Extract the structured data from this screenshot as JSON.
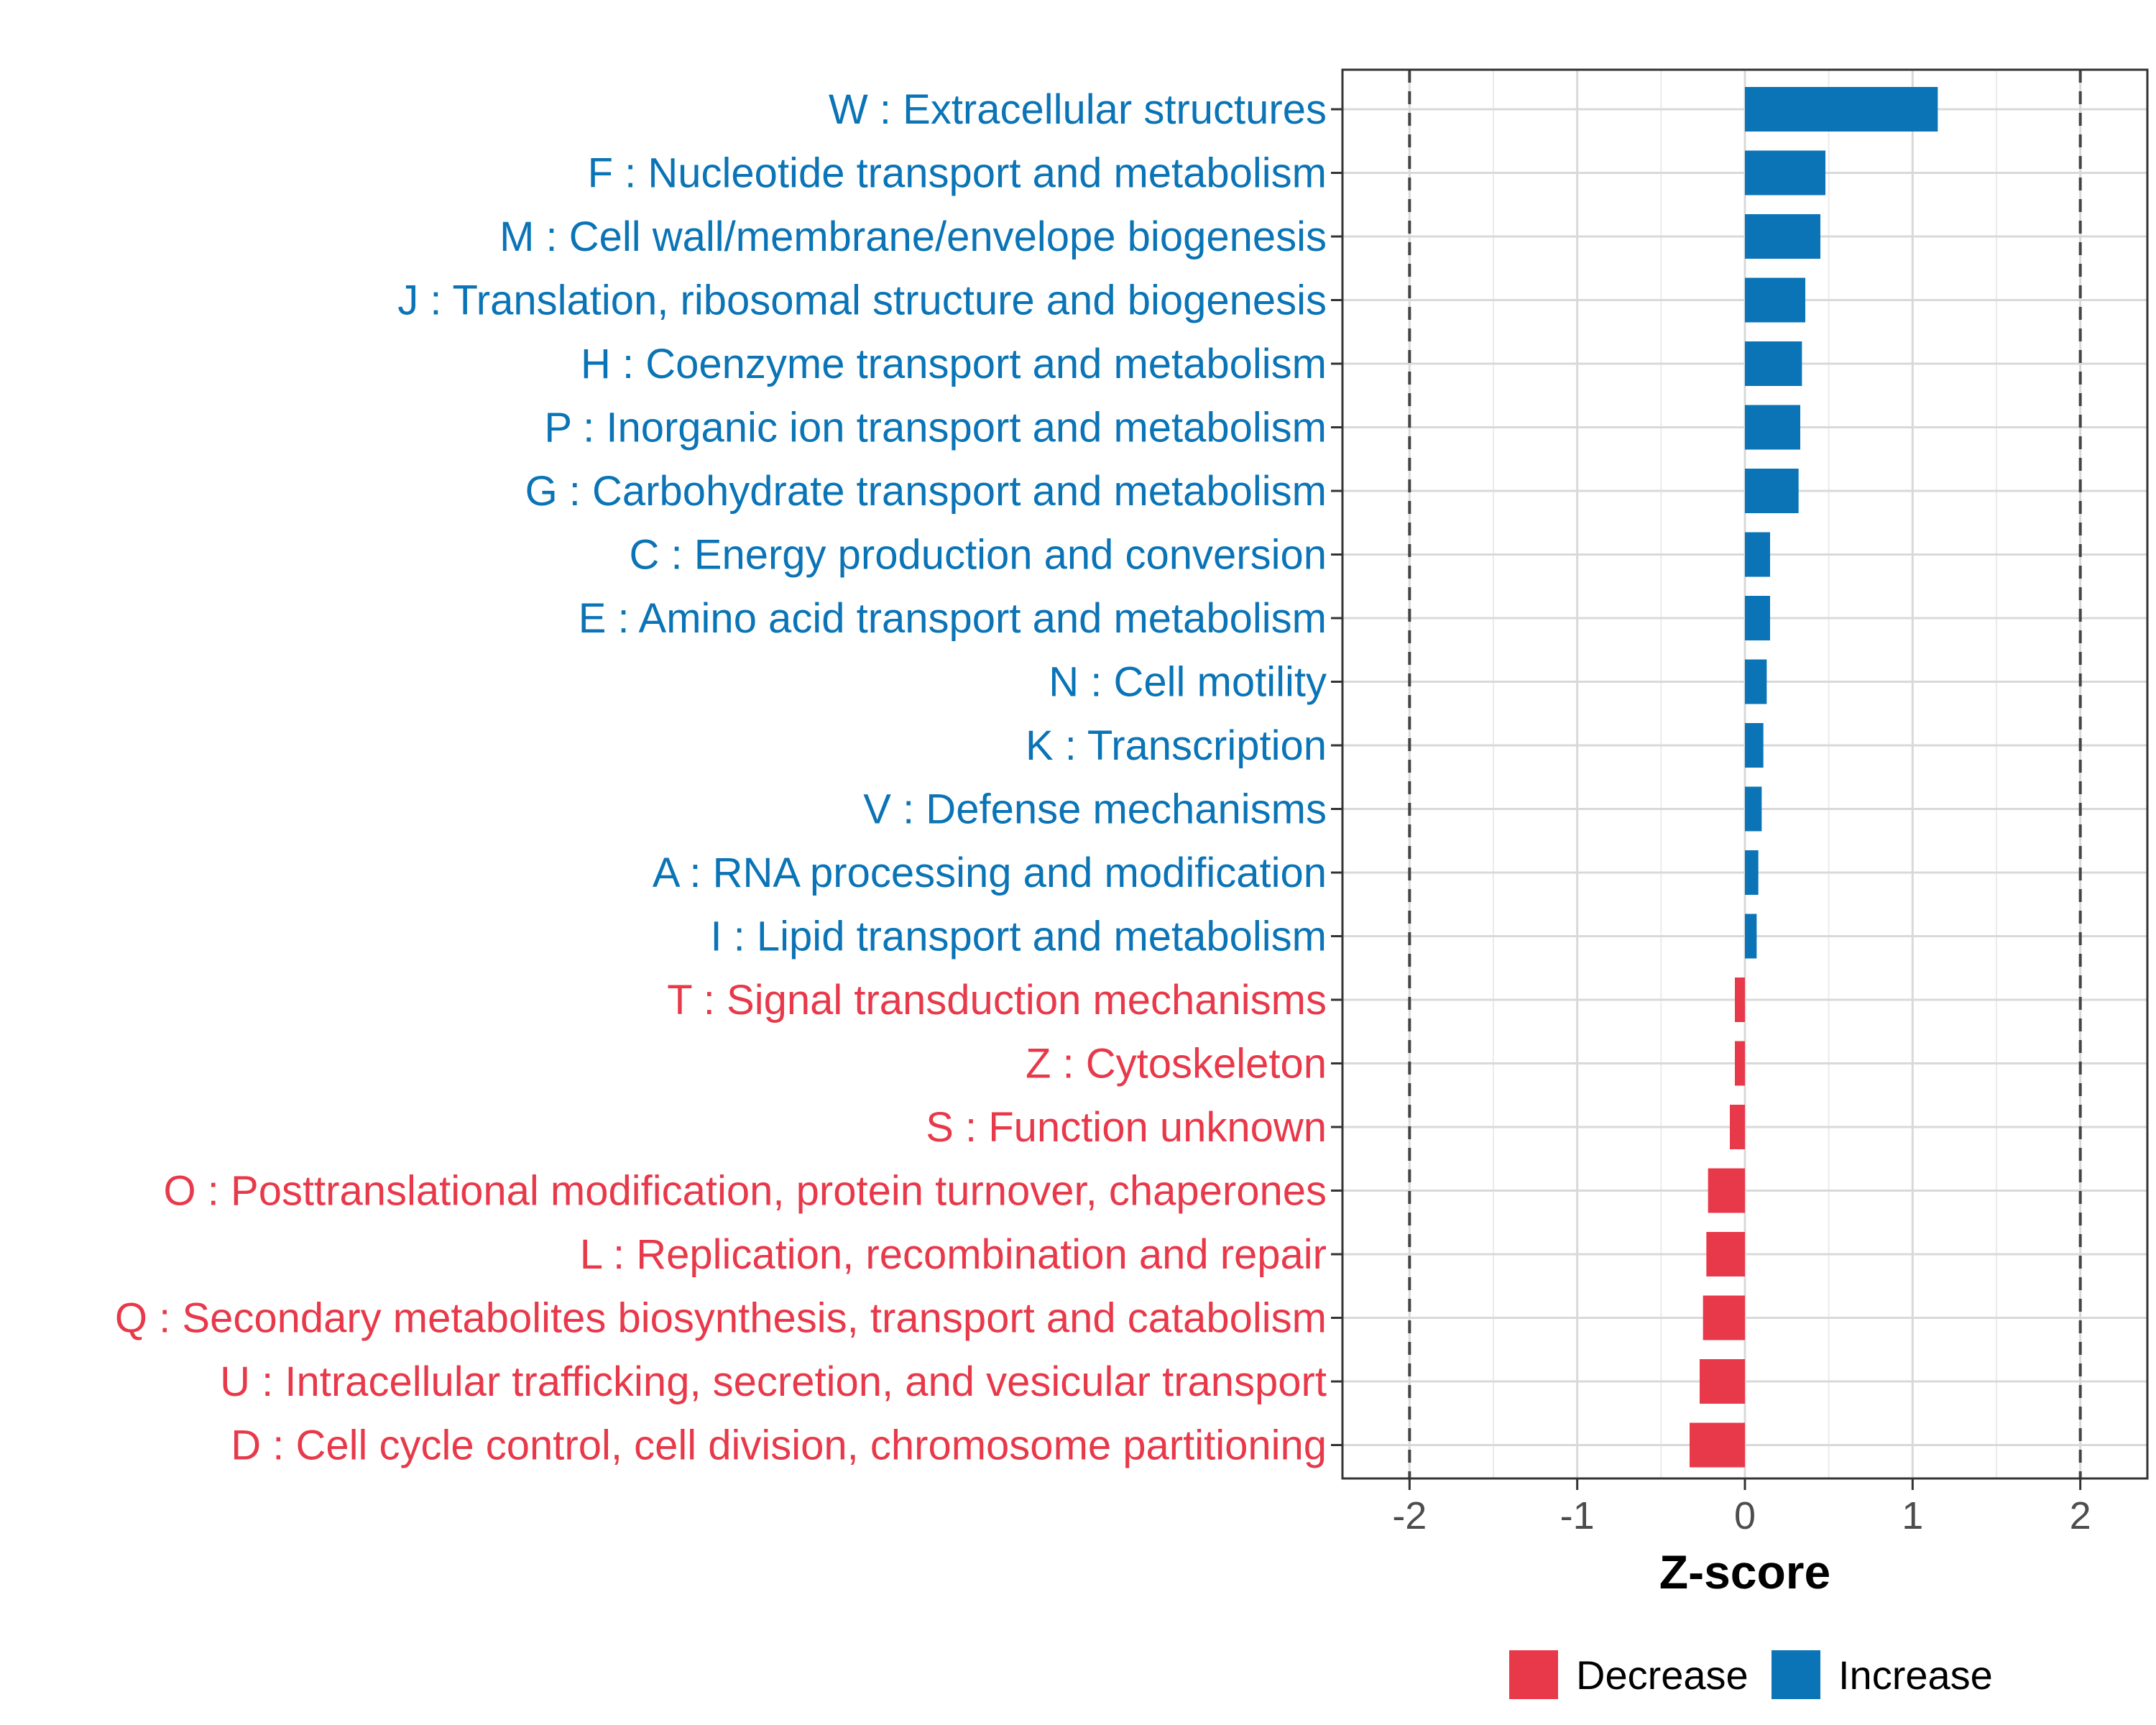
{
  "chart_data": {
    "type": "bar",
    "orientation": "horizontal",
    "xlabel": "Z-score",
    "ylabel": "",
    "xlim": [
      -2.4,
      2.4
    ],
    "xticks": [
      -2,
      -1,
      0,
      1,
      2
    ],
    "xtick_labels": [
      "-2",
      "-1",
      "0",
      "1",
      "2"
    ],
    "reference_lines": [
      -2,
      2
    ],
    "grid": true,
    "colors": {
      "Decrease": "#E8394A",
      "Increase": "#0A74B6"
    },
    "categories": [
      {
        "label": "W : Extracellular structures",
        "value": 1.15,
        "group": "Increase"
      },
      {
        "label": "F : Nucleotide transport and metabolism",
        "value": 0.48,
        "group": "Increase"
      },
      {
        "label": "M : Cell wall/membrane/envelope biogenesis",
        "value": 0.45,
        "group": "Increase"
      },
      {
        "label": "J : Translation, ribosomal structure and biogenesis",
        "value": 0.36,
        "group": "Increase"
      },
      {
        "label": "H : Coenzyme transport and metabolism",
        "value": 0.34,
        "group": "Increase"
      },
      {
        "label": "P : Inorganic ion transport and metabolism",
        "value": 0.33,
        "group": "Increase"
      },
      {
        "label": "G : Carbohydrate transport and metabolism",
        "value": 0.32,
        "group": "Increase"
      },
      {
        "label": "C : Energy production and conversion",
        "value": 0.15,
        "group": "Increase"
      },
      {
        "label": "E : Amino acid transport and metabolism",
        "value": 0.15,
        "group": "Increase"
      },
      {
        "label": "N : Cell motility",
        "value": 0.13,
        "group": "Increase"
      },
      {
        "label": "K : Transcription",
        "value": 0.11,
        "group": "Increase"
      },
      {
        "label": "V : Defense mechanisms",
        "value": 0.1,
        "group": "Increase"
      },
      {
        "label": "A : RNA processing and modification",
        "value": 0.08,
        "group": "Increase"
      },
      {
        "label": "I : Lipid transport and metabolism",
        "value": 0.07,
        "group": "Increase"
      },
      {
        "label": "T : Signal transduction mechanisms",
        "value": -0.06,
        "group": "Decrease"
      },
      {
        "label": "Z : Cytoskeleton",
        "value": -0.06,
        "group": "Decrease"
      },
      {
        "label": "S : Function unknown",
        "value": -0.09,
        "group": "Decrease"
      },
      {
        "label": "O : Posttranslational modification, protein turnover, chaperones",
        "value": -0.22,
        "group": "Decrease"
      },
      {
        "label": "L : Replication, recombination and repair",
        "value": -0.23,
        "group": "Decrease"
      },
      {
        "label": "Q : Secondary metabolites biosynthesis, transport and catabolism",
        "value": -0.25,
        "group": "Decrease"
      },
      {
        "label": "U : Intracellular trafficking, secretion, and vesicular transport",
        "value": -0.27,
        "group": "Decrease"
      },
      {
        "label": "D : Cell cycle control, cell division, chromosome partitioning",
        "value": -0.33,
        "group": "Decrease"
      }
    ],
    "legend": {
      "position": "bottom",
      "entries": [
        {
          "label": "Decrease"
        },
        {
          "label": "Increase"
        }
      ]
    }
  }
}
